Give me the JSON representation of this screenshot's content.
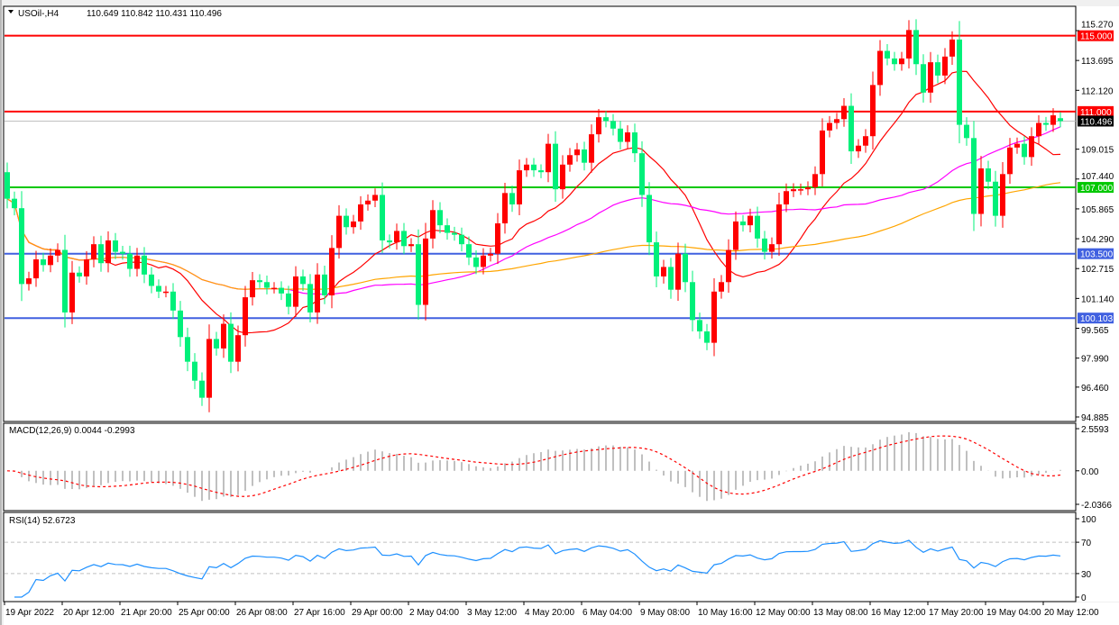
{
  "header": {
    "symbol": "USOil-,H4",
    "ohlc": "110.649 110.842 110.431 110.496"
  },
  "chart_data": {
    "type": "candlestick",
    "symbol": "USOil-",
    "timeframe": "H4",
    "colors": {
      "up": "#ff0000",
      "down": "#00f07a",
      "ma_fast": "#ff0000",
      "ma_mid": "#ff00ff",
      "ma_slow": "#ffa500",
      "current": "#c0c0c0"
    },
    "first_open": 107.8,
    "last_open": 110.649,
    "close": [
      106.4,
      105.9,
      101.9,
      102.2,
      103.2,
      102.9,
      103.4,
      103.7,
      100.4,
      102.5,
      102.3,
      103.2,
      104.0,
      103.0,
      104.2,
      103.6,
      103.5,
      102.7,
      103.4,
      102.4,
      101.8,
      101.5,
      101.5,
      100.5,
      99.1,
      97.8,
      96.8,
      95.9,
      99.0,
      98.5,
      99.8,
      97.8,
      99.2,
      101.2,
      102.1,
      102.0,
      101.7,
      101.7,
      101.4,
      100.7,
      102.3,
      101.9,
      100.4,
      102.4,
      101.3,
      103.8,
      105.5,
      104.9,
      105.2,
      106.1,
      106.3,
      106.6,
      104.2,
      104.1,
      104.7,
      103.9,
      104.0,
      100.8,
      104.3,
      105.8,
      105.0,
      104.6,
      104.5,
      104.0,
      103.3,
      102.8,
      103.4,
      103.5,
      105.1,
      106.7,
      106.1,
      107.9,
      108.2,
      107.9,
      107.8,
      109.3,
      106.9,
      108.2,
      108.7,
      109.0,
      108.3,
      109.8,
      110.7,
      110.5,
      110.1,
      109.4,
      109.9,
      108.8,
      106.6,
      104.1,
      102.3,
      102.8,
      101.6,
      103.5,
      102.0,
      100.0,
      99.4,
      98.8,
      101.5,
      102.0,
      103.7,
      105.2,
      105.0,
      105.5,
      104.3,
      103.6,
      104.0,
      106.1,
      106.8,
      106.9,
      106.9,
      107.0,
      107.7,
      110.0,
      110.4,
      110.6,
      111.3,
      108.9,
      109.2,
      109.7,
      112.4,
      114.2,
      113.8,
      113.5,
      113.8,
      115.3,
      113.5,
      112.0,
      113.6,
      112.9,
      113.9,
      114.8,
      110.3,
      109.6,
      105.6,
      108.0,
      107.3,
      105.5,
      107.7,
      109.1,
      109.3,
      108.6,
      109.7,
      110.4,
      110.3,
      110.8,
      110.496
    ],
    "ylim": [
      94.885,
      115.27
    ],
    "price_ticks": [
      "115.270",
      "113.695",
      "112.120",
      "109.015",
      "107.440",
      "105.865",
      "104.290",
      "102.715",
      "101.140",
      "99.565",
      "97.990",
      "96.460",
      "94.885"
    ],
    "x_tick_labels": [
      "19 Apr 2022",
      "20 Apr 12:00",
      "21 Apr 20:00",
      "25 Apr 00:00",
      "26 Apr 08:00",
      "27 Apr 16:00",
      "29 Apr 00:00",
      "2 May 04:00",
      "3 May 12:00",
      "4 May 20:00",
      "6 May 04:00",
      "9 May 08:00",
      "10 May 16:00",
      "12 May 00:00",
      "13 May 08:00",
      "16 May 12:00",
      "17 May 20:00",
      "19 May 04:00",
      "20 May 12:00"
    ],
    "horizontal_levels": [
      {
        "value": 115.0,
        "label": "115.000",
        "color": "#ff0000"
      },
      {
        "value": 111.0,
        "label": "111.000",
        "color": "#ff0000"
      },
      {
        "value": 107.0,
        "label": "107.000",
        "color": "#00c800"
      },
      {
        "value": 103.5,
        "label": "103.500",
        "color": "#4060e0"
      },
      {
        "value": 100.103,
        "label": "100.103",
        "color": "#4060e0"
      }
    ],
    "current_price": {
      "value": 110.496,
      "label": "110.496"
    },
    "macd": {
      "label": "MACD(12,26,9) 0.0044 -0.2993",
      "ylim": [
        -2.0366,
        2.5593
      ],
      "ticks": [
        "2.5593",
        "0.00",
        "-2.0366"
      ]
    },
    "rsi": {
      "label": "RSI(14) 52.6723",
      "ylim": [
        0,
        100
      ],
      "ticks": [
        "100",
        "70",
        "30",
        "0"
      ],
      "levels": [
        70,
        30
      ]
    }
  }
}
